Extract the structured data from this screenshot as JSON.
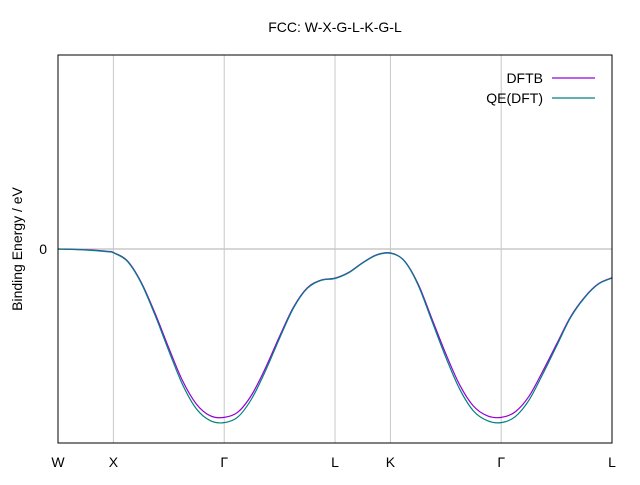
{
  "chart_data": {
    "type": "line",
    "title": "FCC: W-X-G-L-K-G-L",
    "xlabel": "",
    "ylabel": "Binding Energy / eV",
    "x_ticks": [
      {
        "label": "W",
        "x": 0.0
      },
      {
        "label": "X",
        "x": 1.0
      },
      {
        "label": "Γ",
        "x": 3.0
      },
      {
        "label": "L",
        "x": 5.0
      },
      {
        "label": "K",
        "x": 6.0
      },
      {
        "label": "Γ",
        "x": 8.0
      },
      {
        "label": "L",
        "x": 10.0
      }
    ],
    "y_ticks": [
      {
        "label": "0",
        "y": 0
      }
    ],
    "xlim": [
      0,
      10
    ],
    "ylim": [
      -1.0,
      1.0
    ],
    "zero_line": 0,
    "grid": true,
    "legend_position": "top-right",
    "series": [
      {
        "name": "DFTB",
        "color": "#9400d3",
        "x": [
          0,
          0.5,
          0.9,
          1.0,
          1.25,
          1.5,
          1.75,
          2.0,
          2.25,
          2.5,
          2.75,
          3.0,
          3.25,
          3.5,
          3.75,
          4.0,
          4.25,
          4.5,
          4.75,
          5.0,
          5.25,
          5.5,
          5.75,
          6.0,
          6.25,
          6.5,
          6.75,
          7.0,
          7.25,
          7.5,
          7.75,
          8.0,
          8.25,
          8.5,
          8.75,
          9.0,
          9.25,
          9.5,
          9.75,
          10.0
        ],
        "y": [
          0,
          -0.004,
          -0.012,
          -0.018,
          -0.06,
          -0.17,
          -0.33,
          -0.51,
          -0.68,
          -0.8,
          -0.86,
          -0.868,
          -0.84,
          -0.75,
          -0.61,
          -0.45,
          -0.3,
          -0.2,
          -0.16,
          -0.15,
          -0.12,
          -0.07,
          -0.03,
          -0.02,
          -0.06,
          -0.18,
          -0.36,
          -0.54,
          -0.7,
          -0.81,
          -0.86,
          -0.868,
          -0.84,
          -0.76,
          -0.63,
          -0.49,
          -0.35,
          -0.25,
          -0.18,
          -0.148
        ]
      },
      {
        "name": "QE(DFT)",
        "color": "#008080",
        "x": [
          0,
          0.5,
          0.9,
          1.0,
          1.25,
          1.5,
          1.75,
          2.0,
          2.25,
          2.5,
          2.75,
          3.0,
          3.25,
          3.5,
          3.75,
          4.0,
          4.25,
          4.5,
          4.75,
          5.0,
          5.25,
          5.5,
          5.75,
          6.0,
          6.25,
          6.5,
          6.75,
          7.0,
          7.25,
          7.5,
          7.75,
          8.0,
          8.25,
          8.5,
          8.75,
          9.0,
          9.25,
          9.5,
          9.75,
          10.0
        ],
        "y": [
          0,
          -0.005,
          -0.014,
          -0.02,
          -0.063,
          -0.175,
          -0.34,
          -0.525,
          -0.7,
          -0.825,
          -0.885,
          -0.895,
          -0.865,
          -0.77,
          -0.625,
          -0.46,
          -0.305,
          -0.203,
          -0.162,
          -0.152,
          -0.122,
          -0.072,
          -0.032,
          -0.022,
          -0.062,
          -0.186,
          -0.372,
          -0.558,
          -0.722,
          -0.835,
          -0.885,
          -0.895,
          -0.865,
          -0.78,
          -0.645,
          -0.5,
          -0.355,
          -0.253,
          -0.182,
          -0.15
        ]
      }
    ]
  }
}
